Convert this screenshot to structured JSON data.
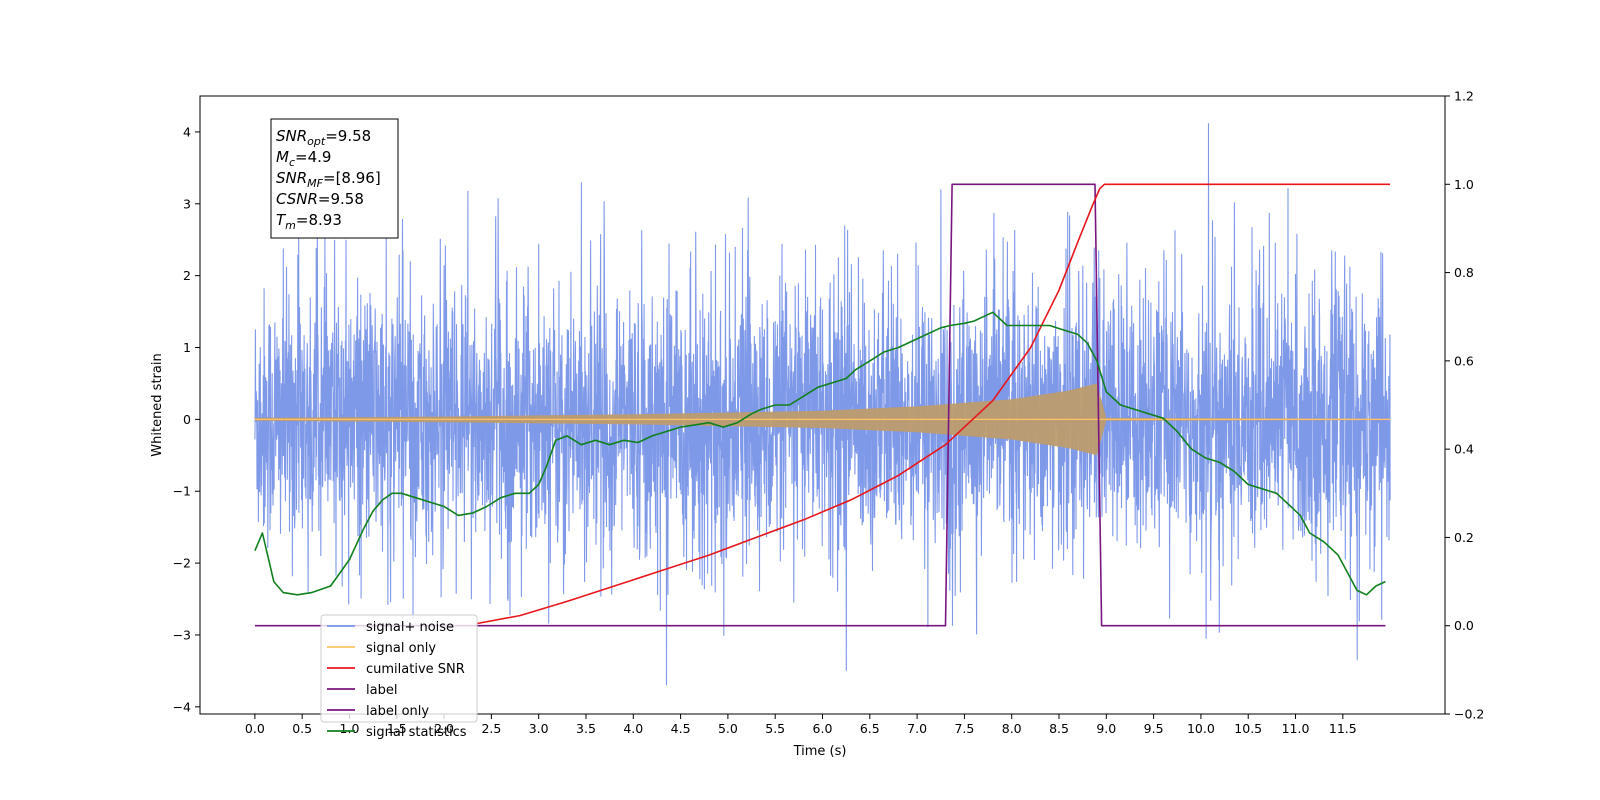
{
  "chart_data": {
    "type": "line",
    "title": "",
    "xlabel": "Time (s)",
    "ylabel": "Whitened strain",
    "y2label": "",
    "xlim": [
      -0.58,
      12.58
    ],
    "ylim": [
      -4.1,
      4.5
    ],
    "y2lim": [
      -0.2,
      1.2
    ],
    "x_ticks": [
      "0.0",
      "0.5",
      "1.0",
      "1.5",
      "2.0",
      "2.5",
      "3.0",
      "3.5",
      "4.0",
      "4.5",
      "5.0",
      "5.5",
      "6.0",
      "6.5",
      "7.0",
      "7.5",
      "8.0",
      "8.5",
      "9.0",
      "9.5",
      "10.0",
      "10.5",
      "11.0",
      "11.5"
    ],
    "y_ticks": [
      "4",
      "3",
      "2",
      "1",
      "0",
      "−1",
      "−2",
      "−3",
      "−4"
    ],
    "y2_ticks": [
      "1.2",
      "1.0",
      "0.8",
      "0.6",
      "0.4",
      "0.2",
      "0.0",
      "−0.2"
    ],
    "legend_position": "lower-left",
    "series": [
      {
        "name": "signal+ noise",
        "axis": "left",
        "color": "#7893e8",
        "style": "dense-noise",
        "x_range": [
          0.0,
          12.0
        ],
        "noise_sigma": 0.9,
        "typical_range": [
          -2.5,
          2.5
        ],
        "extremes": [
          [
            2.25,
            3.18
          ],
          [
            3.45,
            3.3
          ],
          [
            4.35,
            -3.7
          ],
          [
            6.25,
            -3.5
          ],
          [
            7.25,
            3.2
          ],
          [
            10.08,
            4.12
          ],
          [
            10.92,
            3.22
          ],
          [
            11.65,
            -3.35
          ]
        ]
      },
      {
        "name": "signal only",
        "axis": "left",
        "color": "#ffc266",
        "style": "chirp-envelope",
        "x_range": [
          0.0,
          12.0
        ],
        "envelope": [
          [
            0.0,
            0.02
          ],
          [
            2.0,
            0.04
          ],
          [
            4.0,
            0.07
          ],
          [
            6.0,
            0.12
          ],
          [
            7.0,
            0.18
          ],
          [
            8.0,
            0.28
          ],
          [
            8.6,
            0.4
          ],
          [
            8.9,
            0.5
          ],
          [
            9.0,
            0.02
          ],
          [
            12.0,
            0.01
          ]
        ]
      },
      {
        "name": "cumilative SNR",
        "axis": "right",
        "color": "#e8161b",
        "x": [
          2.35,
          2.8,
          3.3,
          3.8,
          4.3,
          4.8,
          5.3,
          5.8,
          6.3,
          6.8,
          7.3,
          7.8,
          8.2,
          8.5,
          8.7,
          8.85,
          8.93,
          8.98,
          12.0
        ],
        "values": [
          0.005,
          0.023,
          0.055,
          0.09,
          0.125,
          0.16,
          0.2,
          0.24,
          0.285,
          0.34,
          0.41,
          0.51,
          0.63,
          0.76,
          0.87,
          0.95,
          0.99,
          1.0,
          1.0
        ]
      },
      {
        "name": "label",
        "axis": "right",
        "color": "#7a1580",
        "x": [
          0.0,
          7.3,
          7.37,
          8.88,
          8.95,
          11.95
        ],
        "values": [
          0.0,
          0.0,
          1.0,
          1.0,
          0.0,
          0.0
        ]
      },
      {
        "name": "label only",
        "axis": "right",
        "color": "#7a1580",
        "hidden_in_plot": true,
        "x": [],
        "values": []
      },
      {
        "name": "signal statistics",
        "axis": "right",
        "color": "#11801e",
        "x": [
          0.0,
          0.08,
          0.2,
          0.3,
          0.45,
          0.6,
          0.8,
          1.0,
          1.15,
          1.25,
          1.35,
          1.45,
          1.55,
          1.7,
          1.85,
          2.0,
          2.15,
          2.3,
          2.45,
          2.6,
          2.75,
          2.9,
          3.0,
          3.08,
          3.18,
          3.3,
          3.45,
          3.6,
          3.75,
          3.9,
          4.05,
          4.2,
          4.35,
          4.5,
          4.65,
          4.8,
          4.95,
          5.1,
          5.25,
          5.35,
          5.5,
          5.65,
          5.8,
          5.95,
          6.1,
          6.25,
          6.35,
          6.5,
          6.65,
          6.8,
          6.95,
          7.1,
          7.25,
          7.35,
          7.5,
          7.6,
          7.7,
          7.8,
          7.95,
          8.1,
          8.25,
          8.4,
          8.55,
          8.7,
          8.8,
          8.9,
          9.0,
          9.15,
          9.3,
          9.45,
          9.6,
          9.75,
          9.9,
          10.05,
          10.2,
          10.35,
          10.5,
          10.65,
          10.8,
          10.95,
          11.05,
          11.15,
          11.3,
          11.45,
          11.55,
          11.65,
          11.75,
          11.85,
          11.95
        ],
        "values": [
          0.17,
          0.21,
          0.1,
          0.075,
          0.07,
          0.075,
          0.09,
          0.15,
          0.22,
          0.26,
          0.285,
          0.3,
          0.3,
          0.29,
          0.28,
          0.27,
          0.25,
          0.255,
          0.27,
          0.29,
          0.3,
          0.3,
          0.32,
          0.36,
          0.42,
          0.43,
          0.41,
          0.42,
          0.41,
          0.42,
          0.415,
          0.43,
          0.44,
          0.45,
          0.455,
          0.46,
          0.45,
          0.46,
          0.48,
          0.49,
          0.5,
          0.5,
          0.52,
          0.54,
          0.55,
          0.56,
          0.58,
          0.6,
          0.62,
          0.63,
          0.645,
          0.66,
          0.675,
          0.68,
          0.685,
          0.69,
          0.7,
          0.71,
          0.68,
          0.68,
          0.68,
          0.68,
          0.67,
          0.66,
          0.64,
          0.6,
          0.53,
          0.5,
          0.49,
          0.48,
          0.47,
          0.44,
          0.4,
          0.38,
          0.37,
          0.35,
          0.32,
          0.31,
          0.3,
          0.27,
          0.25,
          0.21,
          0.19,
          0.16,
          0.12,
          0.08,
          0.07,
          0.09,
          0.1
        ]
      }
    ],
    "info_box": [
      {
        "name": "SNR",
        "sub": "opt",
        "value": "=9.58"
      },
      {
        "name": "M",
        "sub": "c",
        "value": "=4.9"
      },
      {
        "name": "SNR",
        "sub": "MF",
        "value": "=[8.96]"
      },
      {
        "name": "CSNR",
        "sub": "",
        "value": "=9.58"
      },
      {
        "name": "T",
        "sub": "m",
        "value": "=8.93"
      }
    ]
  }
}
